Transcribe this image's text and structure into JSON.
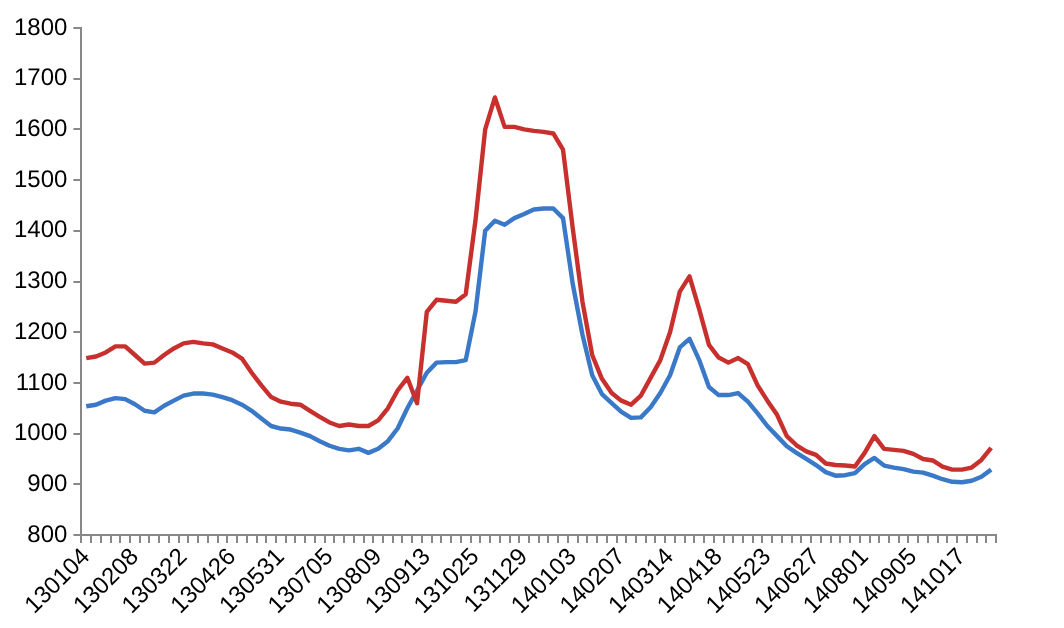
{
  "chart_data": {
    "type": "line",
    "categories": [
      "130104",
      null,
      null,
      null,
      null,
      "130208",
      null,
      null,
      null,
      null,
      "130322",
      null,
      null,
      null,
      null,
      "130426",
      null,
      null,
      null,
      null,
      "130531",
      null,
      null,
      null,
      null,
      "130705",
      null,
      null,
      null,
      null,
      "130809",
      null,
      null,
      null,
      null,
      "130913",
      null,
      null,
      null,
      null,
      "131025",
      null,
      null,
      null,
      null,
      "131129",
      null,
      null,
      null,
      null,
      "140103",
      null,
      null,
      null,
      null,
      "140207",
      null,
      null,
      null,
      null,
      "140314",
      null,
      null,
      null,
      null,
      "140418",
      null,
      null,
      null,
      null,
      "140523",
      null,
      null,
      null,
      null,
      "140627",
      null,
      null,
      null,
      null,
      "140801",
      null,
      null,
      null,
      null,
      "140905",
      null,
      null,
      null,
      null,
      "141017",
      null,
      null,
      null
    ],
    "series": [
      {
        "color": "#c8302e",
        "values": [
          1149,
          1152,
          1160,
          1172,
          1172,
          1155,
          1138,
          1140,
          1155,
          1168,
          1178,
          1181,
          1178,
          1176,
          1168,
          1160,
          1148,
          1120,
          1095,
          1072,
          1063,
          1059,
          1057,
          1045,
          1033,
          1022,
          1015,
          1018,
          1015,
          1015,
          1026,
          1050,
          1085,
          1110,
          1060,
          1240,
          1264,
          1262,
          1260,
          1275,
          1420,
          1600,
          1663,
          1605,
          1605,
          1600,
          1597,
          1595,
          1592,
          1560,
          1405,
          1260,
          1155,
          1108,
          1080,
          1065,
          1057,
          1075,
          1110,
          1145,
          1200,
          1280,
          1310,
          1245,
          1175,
          1150,
          1140,
          1149,
          1137,
          1095,
          1065,
          1037,
          995,
          977,
          965,
          958,
          941,
          938,
          937,
          935,
          962,
          995,
          970,
          968,
          966,
          960,
          950,
          947,
          935,
          929,
          929,
          933,
          948,
          972
        ]
      },
      {
        "color": "#3a78c8",
        "values": [
          1054,
          1057,
          1065,
          1070,
          1068,
          1058,
          1045,
          1042,
          1055,
          1065,
          1075,
          1079,
          1079,
          1077,
          1072,
          1066,
          1057,
          1045,
          1030,
          1015,
          1010,
          1008,
          1002,
          995,
          985,
          976,
          970,
          967,
          970,
          962,
          970,
          985,
          1010,
          1050,
          1085,
          1120,
          1140,
          1141,
          1141,
          1145,
          1240,
          1400,
          1420,
          1412,
          1425,
          1433,
          1442,
          1444,
          1444,
          1425,
          1295,
          1195,
          1115,
          1078,
          1060,
          1043,
          1031,
          1032,
          1052,
          1080,
          1115,
          1170,
          1187,
          1145,
          1092,
          1076,
          1076,
          1080,
          1063,
          1040,
          1015,
          995,
          975,
          962,
          950,
          938,
          924,
          917,
          918,
          922,
          940,
          952,
          937,
          933,
          930,
          925,
          923,
          917,
          910,
          905,
          904,
          907,
          915,
          929
        ]
      }
    ],
    "ylim": [
      800,
      1800
    ],
    "yticks": [
      800,
      900,
      1000,
      1100,
      1200,
      1300,
      1400,
      1500,
      1600,
      1700,
      1800
    ],
    "marker": "none",
    "line_style": "solid"
  }
}
